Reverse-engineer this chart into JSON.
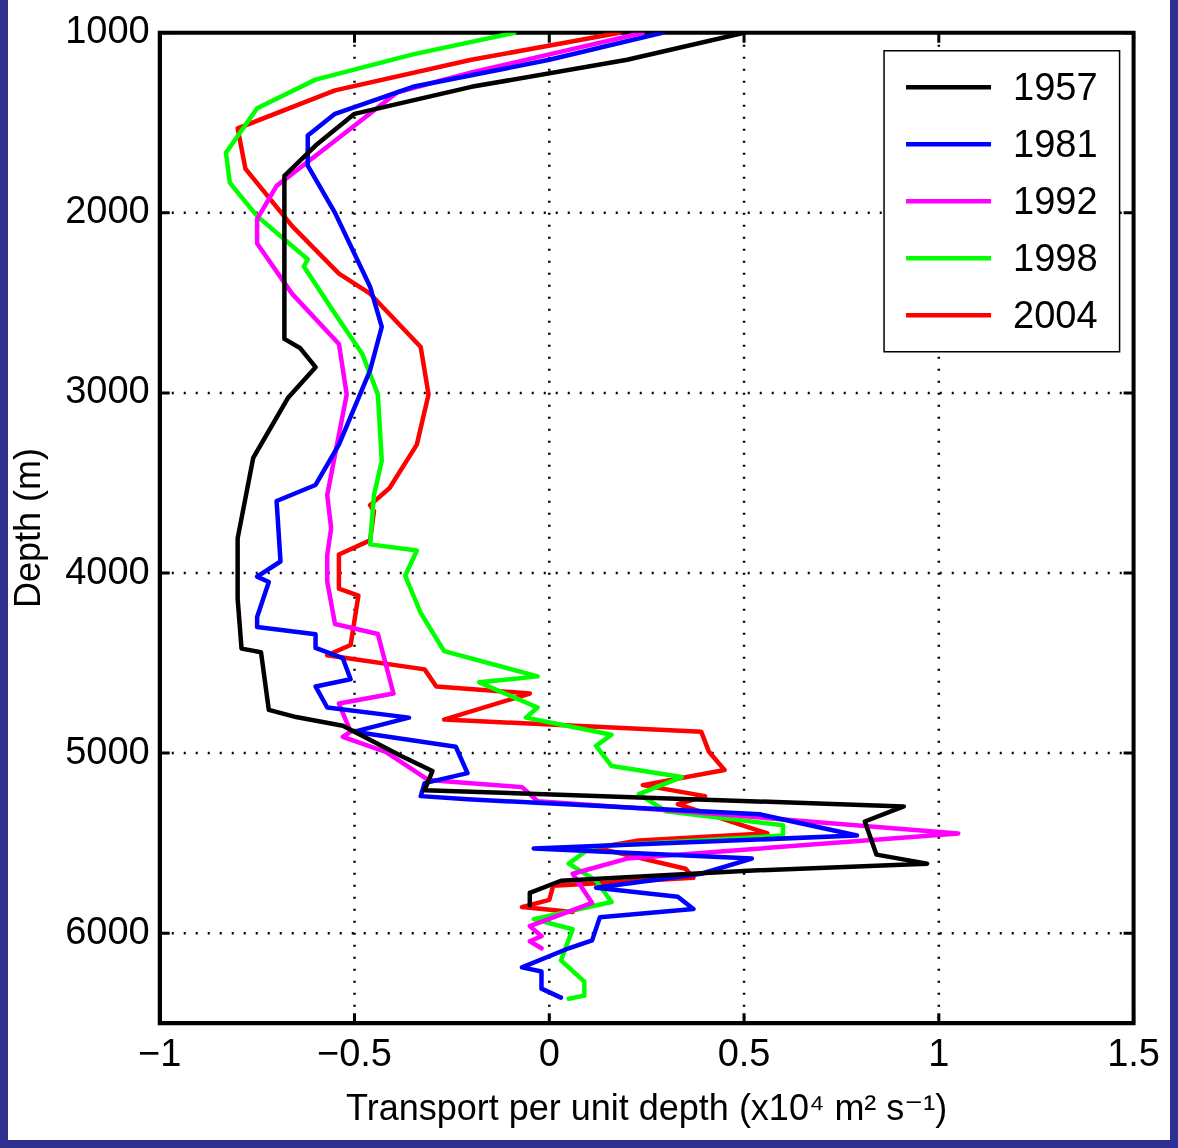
{
  "chart_data": {
    "type": "line",
    "xlabel": "Transport per unit depth (x10⁴ m² s⁻¹)",
    "ylabel": "Depth (m)",
    "xlim": [
      -1,
      1.5
    ],
    "xticks": [
      {
        "value": -1,
        "label": "−1"
      },
      {
        "value": -0.5,
        "label": "−0.5"
      },
      0,
      0.5,
      1,
      1.5
    ],
    "ylim": [
      6500,
      1000
    ],
    "yticks": [
      1000,
      2000,
      3000,
      4000,
      5000,
      6000
    ],
    "grid": true,
    "legend": "top right",
    "marker": "none",
    "line_style": "solid",
    "series": [
      {
        "name": "1957",
        "color": "#000000",
        "x": [
          0.5,
          0.2,
          -0.2,
          -0.5,
          -0.6,
          -0.68,
          -0.68,
          -0.64,
          -0.6,
          -0.67,
          -0.76,
          -0.8,
          -0.8,
          -0.79,
          -0.74,
          -0.72,
          -0.65,
          -0.53,
          -0.38,
          -0.3,
          -0.32,
          0.91,
          0.81,
          0.84,
          0.97,
          0.51,
          0.03,
          -0.05,
          -0.05
        ],
        "values": [
          1000,
          1150,
          1300,
          1450,
          1626,
          1794,
          2700,
          2750,
          2857,
          3025,
          3360,
          3808,
          4143,
          4420,
          4440,
          4760,
          4800,
          4848,
          5016,
          5100,
          5206,
          5296,
          5380,
          5564,
          5614,
          5653,
          5709,
          5776,
          5845
        ]
      },
      {
        "name": "1981",
        "color": "#0000ff",
        "x": [
          0.29,
          0.0,
          -0.35,
          -0.55,
          -0.62,
          -0.62,
          -0.55,
          -0.46,
          -0.43,
          -0.46,
          -0.54,
          -0.6,
          -0.7,
          -0.69,
          -0.75,
          -0.72,
          -0.75,
          -0.75,
          -0.6,
          -0.6,
          -0.53,
          -0.51,
          -0.6,
          -0.57,
          -0.36,
          -0.5,
          -0.24,
          -0.21,
          -0.32,
          -0.33,
          -0.21,
          0.54,
          0.79,
          -0.04,
          0.52,
          0.39,
          0.12,
          0.33,
          0.37,
          0.13,
          0.11,
          0.05,
          -0.07,
          -0.02,
          -0.02,
          0.03
        ],
        "values": [
          1000,
          1150,
          1300,
          1450,
          1570,
          1738,
          2000,
          2410,
          2633,
          2874,
          3287,
          3511,
          3600,
          3936,
          4020,
          4050,
          4244,
          4300,
          4340,
          4416,
          4473,
          4590,
          4630,
          4747,
          4803,
          4881,
          4965,
          5111,
          5167,
          5239,
          5256,
          5340,
          5458,
          5530,
          5586,
          5670,
          5748,
          5798,
          5866,
          5911,
          6040,
          6084,
          6190,
          6213,
          6308,
          6358
        ]
      },
      {
        "name": "1992",
        "color": "#ff00ff",
        "x": [
          0.24,
          0.0,
          -0.2,
          -0.39,
          -0.55,
          -0.7,
          -0.75,
          -0.75,
          -0.66,
          -0.54,
          -0.52,
          -0.57,
          -0.56,
          -0.57,
          -0.57,
          -0.55,
          -0.44,
          -0.4,
          -0.54,
          -0.51,
          -0.53,
          -0.42,
          -0.31,
          -0.07,
          -0.03,
          0.34,
          1.05,
          0.2,
          0.06,
          0.11,
          -0.05,
          -0.02,
          -0.05,
          -0.02
        ],
        "values": [
          1000,
          1120,
          1220,
          1330,
          1600,
          1850,
          2035,
          2170,
          2450,
          2728,
          3008,
          3567,
          3752,
          3900,
          4048,
          4283,
          4339,
          4669,
          4725,
          4881,
          4910,
          4993,
          5150,
          5189,
          5267,
          5323,
          5446,
          5586,
          5670,
          5832,
          5961,
          6017,
          6045,
          6084
        ]
      },
      {
        "name": "1998",
        "color": "#00ff00",
        "x": [
          -0.09,
          -0.35,
          -0.6,
          -0.75,
          -0.83,
          -0.82,
          -0.75,
          -0.62,
          -0.63,
          -0.55,
          -0.48,
          -0.44,
          -0.43,
          -0.45,
          -0.46,
          -0.34,
          -0.37,
          -0.33,
          -0.27,
          -0.03,
          -0.18,
          -0.03,
          -0.06,
          0.16,
          0.12,
          0.16,
          0.34,
          0.23,
          0.3,
          0.6,
          0.6,
          0.11,
          0.05,
          0.12,
          0.16,
          -0.04,
          0.06,
          0.03,
          0.09,
          0.09,
          0.05
        ],
        "values": [
          1000,
          1120,
          1260,
          1419,
          1666,
          1833,
          2018,
          2258,
          2298,
          2560,
          2784,
          3008,
          3377,
          3567,
          3841,
          3875,
          4015,
          4222,
          4434,
          4574,
          4607,
          4747,
          4803,
          4898,
          4960,
          5072,
          5133,
          5228,
          5323,
          5401,
          5458,
          5519,
          5614,
          5709,
          5827,
          5922,
          5978,
          6151,
          6269,
          6347,
          6364
        ]
      },
      {
        "name": "2004",
        "color": "#ff0000",
        "x": [
          0.18,
          -0.2,
          -0.55,
          -0.8,
          -0.78,
          -0.66,
          -0.54,
          -0.46,
          -0.33,
          -0.31,
          -0.34,
          -0.41,
          -0.46,
          -0.45,
          -0.46,
          -0.54,
          -0.54,
          -0.49,
          -0.51,
          -0.57,
          -0.32,
          -0.29,
          -0.05,
          -0.27,
          0.39,
          0.41,
          0.45,
          0.24,
          0.4,
          0.33,
          0.56,
          0.23,
          0.12,
          0.35,
          0.37,
          0.01,
          0.0,
          -0.07,
          0.06
        ],
        "values": [
          1000,
          1150,
          1320,
          1531,
          1755,
          2074,
          2337,
          2449,
          2745,
          3008,
          3287,
          3528,
          3623,
          3657,
          3819,
          3897,
          4087,
          4126,
          4400,
          4457,
          4535,
          4630,
          4669,
          4814,
          4881,
          4993,
          5094,
          5178,
          5239,
          5284,
          5446,
          5485,
          5525,
          5642,
          5692,
          5737,
          5815,
          5855,
          5883
        ]
      }
    ]
  }
}
